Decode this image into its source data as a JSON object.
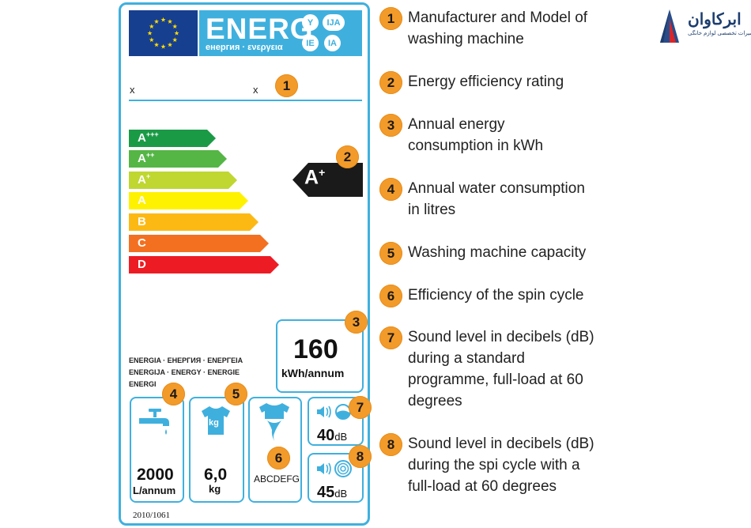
{
  "label": {
    "header_word": "ENERG",
    "header_subtitle": "енергия · ενεργεια",
    "language_marks": [
      "Y",
      "IJA",
      "IE",
      "IA"
    ],
    "model_left": "x",
    "model_right": "x",
    "energy_classes": [
      {
        "letter": "A",
        "plus": "+++",
        "color": "#1b9a46"
      },
      {
        "letter": "A",
        "plus": "++",
        "color": "#55b646"
      },
      {
        "letter": "A",
        "plus": "+",
        "color": "#bfd730"
      },
      {
        "letter": "A",
        "plus": "",
        "color": "#fff200"
      },
      {
        "letter": "B",
        "plus": "",
        "color": "#fdb913"
      },
      {
        "letter": "C",
        "plus": "",
        "color": "#f37021"
      },
      {
        "letter": "D",
        "plus": "",
        "color": "#ed1c24"
      }
    ],
    "rating": {
      "letter": "A",
      "plus": "+"
    },
    "energy_consumption_value": "160",
    "energy_consumption_unit": "kWh/annum",
    "energy_languages": [
      "ENERGIA · ЕНЕРГИЯ · ΕΝΕΡΓΕΙΑ",
      "ENERGIJA · ENERGY · ENERGIE",
      "ENERGI"
    ],
    "water_value": "2000",
    "water_unit": "L/annum",
    "capacity_value": "6,0",
    "capacity_unit": "kg",
    "capacity_icon_text": "kg",
    "spin_classes": "ABCDEFG",
    "wash_noise_value": "40",
    "wash_noise_unit": "dB",
    "spin_noise_value": "45",
    "spin_noise_unit": "dB",
    "regulation": "2010/1061"
  },
  "badges": [
    "1",
    "2",
    "3",
    "4",
    "5",
    "6",
    "7",
    "8"
  ],
  "legend": [
    {
      "number": "1",
      "lines": [
        "Manufacturer and Model of",
        "washing machine"
      ]
    },
    {
      "number": "2",
      "lines": [
        "Energy efficiency rating"
      ]
    },
    {
      "number": "3",
      "lines": [
        "Annual energy",
        "consumption in kWh"
      ]
    },
    {
      "number": "4",
      "lines": [
        "Annual water consumption",
        "in litres"
      ]
    },
    {
      "number": "5",
      "lines": [
        "Washing machine capacity"
      ]
    },
    {
      "number": "6",
      "lines": [
        "Efficiency of the spin cycle"
      ]
    },
    {
      "number": "7",
      "lines": [
        "Sound level in decibels (dB)",
        "during a standard",
        "programme, full-load at 60",
        "degrees"
      ]
    },
    {
      "number": "8",
      "lines": [
        "Sound level in decibels (dB)",
        "during the spi cycle with a",
        "full-load at 60 degrees"
      ]
    }
  ],
  "brand": {
    "name": "ابرکاوان",
    "tagline": "تعمیرات تخصصی لوازم خانگی"
  },
  "colors": {
    "label_blue": "#3fb0de",
    "eu_blue": "#173f8f",
    "badge_orange": "#f39b2a",
    "rating_black": "#1a1a1a"
  }
}
